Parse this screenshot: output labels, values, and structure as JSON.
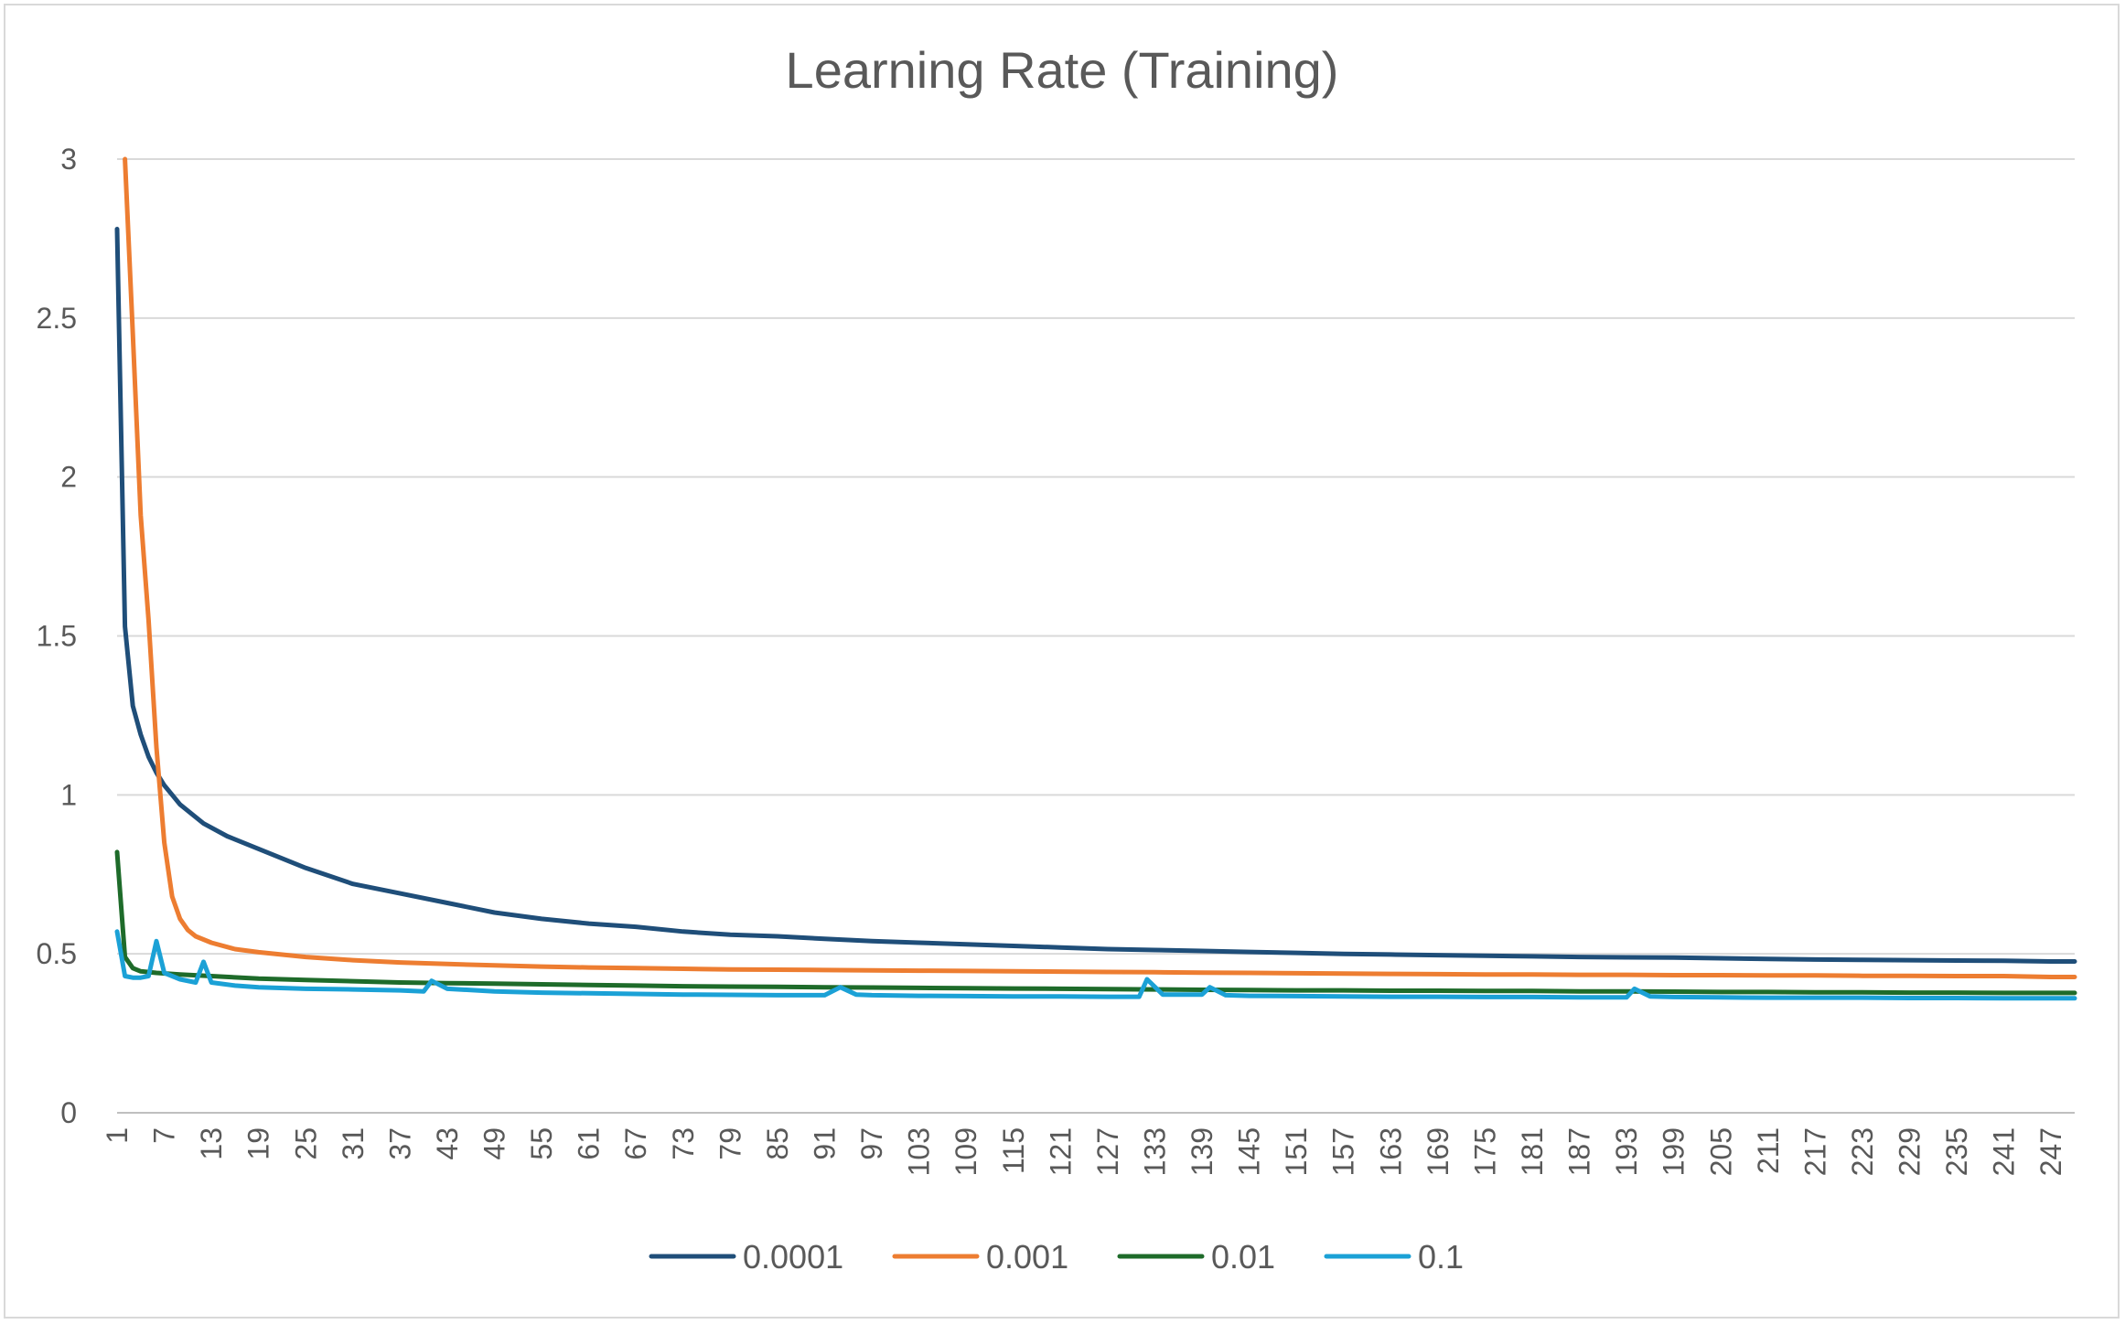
{
  "chart_data": {
    "type": "line",
    "title": "Learning Rate (Training)",
    "xlabel": "",
    "ylabel": "",
    "x_range": [
      1,
      250
    ],
    "x_tick_labels": [
      "1",
      "7",
      "13",
      "19",
      "25",
      "31",
      "37",
      "43",
      "49",
      "55",
      "61",
      "67",
      "73",
      "79",
      "85",
      "91",
      "97",
      "103",
      "109",
      "115",
      "121",
      "127",
      "133",
      "139",
      "145",
      "151",
      "157",
      "163",
      "169",
      "175",
      "181",
      "187",
      "193",
      "199",
      "205",
      "211",
      "217",
      "223",
      "229",
      "235",
      "241",
      "247"
    ],
    "ylim": [
      0,
      3
    ],
    "y_ticks": [
      0,
      0.5,
      1,
      1.5,
      2,
      2.5,
      3
    ],
    "y_tick_labels": [
      "0",
      "0.5",
      "1",
      "1.5",
      "2",
      "2.5",
      "3"
    ],
    "grid": true,
    "legend_position": "bottom",
    "series": [
      {
        "name": "0.0001",
        "color": "#1f4e79",
        "points": [
          [
            1,
            2.78
          ],
          [
            2,
            1.53
          ],
          [
            3,
            1.28
          ],
          [
            4,
            1.19
          ],
          [
            5,
            1.12
          ],
          [
            6,
            1.07
          ],
          [
            7,
            1.03
          ],
          [
            8,
            1.0
          ],
          [
            9,
            0.97
          ],
          [
            10,
            0.95
          ],
          [
            12,
            0.91
          ],
          [
            15,
            0.87
          ],
          [
            19,
            0.83
          ],
          [
            25,
            0.77
          ],
          [
            31,
            0.72
          ],
          [
            37,
            0.69
          ],
          [
            43,
            0.66
          ],
          [
            49,
            0.63
          ],
          [
            55,
            0.61
          ],
          [
            61,
            0.595
          ],
          [
            67,
            0.585
          ],
          [
            73,
            0.57
          ],
          [
            79,
            0.56
          ],
          [
            85,
            0.555
          ],
          [
            91,
            0.547
          ],
          [
            97,
            0.54
          ],
          [
            103,
            0.535
          ],
          [
            109,
            0.53
          ],
          [
            115,
            0.525
          ],
          [
            121,
            0.52
          ],
          [
            127,
            0.515
          ],
          [
            133,
            0.512
          ],
          [
            139,
            0.509
          ],
          [
            145,
            0.506
          ],
          [
            151,
            0.503
          ],
          [
            157,
            0.5
          ],
          [
            163,
            0.498
          ],
          [
            169,
            0.496
          ],
          [
            175,
            0.494
          ],
          [
            181,
            0.492
          ],
          [
            187,
            0.49
          ],
          [
            193,
            0.489
          ],
          [
            199,
            0.488
          ],
          [
            205,
            0.486
          ],
          [
            211,
            0.484
          ],
          [
            217,
            0.482
          ],
          [
            223,
            0.481
          ],
          [
            229,
            0.48
          ],
          [
            235,
            0.479
          ],
          [
            241,
            0.478
          ],
          [
            247,
            0.476
          ],
          [
            250,
            0.476
          ]
        ]
      },
      {
        "name": "0.001",
        "color": "#ed7d31",
        "points": [
          [
            2,
            3.0
          ],
          [
            3,
            2.45
          ],
          [
            4,
            1.88
          ],
          [
            5,
            1.55
          ],
          [
            6,
            1.15
          ],
          [
            7,
            0.85
          ],
          [
            8,
            0.68
          ],
          [
            9,
            0.61
          ],
          [
            10,
            0.575
          ],
          [
            11,
            0.555
          ],
          [
            13,
            0.535
          ],
          [
            16,
            0.515
          ],
          [
            19,
            0.505
          ],
          [
            25,
            0.49
          ],
          [
            31,
            0.48
          ],
          [
            37,
            0.473
          ],
          [
            43,
            0.468
          ],
          [
            49,
            0.464
          ],
          [
            55,
            0.46
          ],
          [
            61,
            0.457
          ],
          [
            67,
            0.455
          ],
          [
            73,
            0.453
          ],
          [
            79,
            0.451
          ],
          [
            85,
            0.45
          ],
          [
            91,
            0.449
          ],
          [
            97,
            0.448
          ],
          [
            103,
            0.447
          ],
          [
            109,
            0.446
          ],
          [
            115,
            0.445
          ],
          [
            121,
            0.444
          ],
          [
            127,
            0.443
          ],
          [
            133,
            0.442
          ],
          [
            139,
            0.441
          ],
          [
            145,
            0.44
          ],
          [
            151,
            0.439
          ],
          [
            157,
            0.438
          ],
          [
            163,
            0.437
          ],
          [
            169,
            0.436
          ],
          [
            175,
            0.435
          ],
          [
            181,
            0.435
          ],
          [
            187,
            0.434
          ],
          [
            193,
            0.434
          ],
          [
            199,
            0.433
          ],
          [
            205,
            0.433
          ],
          [
            211,
            0.432
          ],
          [
            217,
            0.432
          ],
          [
            223,
            0.431
          ],
          [
            229,
            0.431
          ],
          [
            235,
            0.43
          ],
          [
            241,
            0.43
          ],
          [
            247,
            0.427
          ],
          [
            250,
            0.427
          ]
        ]
      },
      {
        "name": "0.01",
        "color": "#1e6b2a",
        "points": [
          [
            1,
            0.82
          ],
          [
            2,
            0.49
          ],
          [
            3,
            0.455
          ],
          [
            4,
            0.445
          ],
          [
            6,
            0.44
          ],
          [
            9,
            0.435
          ],
          [
            13,
            0.43
          ],
          [
            19,
            0.422
          ],
          [
            25,
            0.418
          ],
          [
            31,
            0.414
          ],
          [
            37,
            0.41
          ],
          [
            43,
            0.408
          ],
          [
            49,
            0.406
          ],
          [
            55,
            0.404
          ],
          [
            61,
            0.402
          ],
          [
            67,
            0.4
          ],
          [
            73,
            0.398
          ],
          [
            79,
            0.397
          ],
          [
            85,
            0.396
          ],
          [
            91,
            0.395
          ],
          [
            97,
            0.394
          ],
          [
            103,
            0.393
          ],
          [
            109,
            0.392
          ],
          [
            115,
            0.391
          ],
          [
            121,
            0.39
          ],
          [
            127,
            0.389
          ],
          [
            133,
            0.388
          ],
          [
            139,
            0.387
          ],
          [
            145,
            0.386
          ],
          [
            151,
            0.385
          ],
          [
            157,
            0.385
          ],
          [
            163,
            0.384
          ],
          [
            169,
            0.384
          ],
          [
            175,
            0.383
          ],
          [
            181,
            0.383
          ],
          [
            187,
            0.382
          ],
          [
            193,
            0.382
          ],
          [
            199,
            0.381
          ],
          [
            205,
            0.38
          ],
          [
            211,
            0.38
          ],
          [
            217,
            0.379
          ],
          [
            223,
            0.379
          ],
          [
            229,
            0.378
          ],
          [
            235,
            0.378
          ],
          [
            241,
            0.377
          ],
          [
            247,
            0.377
          ],
          [
            250,
            0.377
          ]
        ]
      },
      {
        "name": "0.1",
        "color": "#1ba1d6",
        "points": [
          [
            1,
            0.57
          ],
          [
            2,
            0.43
          ],
          [
            3,
            0.425
          ],
          [
            4,
            0.425
          ],
          [
            5,
            0.43
          ],
          [
            6,
            0.54
          ],
          [
            7,
            0.44
          ],
          [
            9,
            0.42
          ],
          [
            11,
            0.41
          ],
          [
            12,
            0.475
          ],
          [
            13,
            0.41
          ],
          [
            16,
            0.4
          ],
          [
            19,
            0.395
          ],
          [
            25,
            0.39
          ],
          [
            31,
            0.388
          ],
          [
            37,
            0.385
          ],
          [
            40,
            0.382
          ],
          [
            41,
            0.415
          ],
          [
            43,
            0.39
          ],
          [
            49,
            0.382
          ],
          [
            55,
            0.378
          ],
          [
            61,
            0.376
          ],
          [
            67,
            0.374
          ],
          [
            73,
            0.372
          ],
          [
            79,
            0.371
          ],
          [
            85,
            0.37
          ],
          [
            91,
            0.37
          ],
          [
            93,
            0.395
          ],
          [
            95,
            0.372
          ],
          [
            97,
            0.37
          ],
          [
            103,
            0.368
          ],
          [
            109,
            0.367
          ],
          [
            115,
            0.366
          ],
          [
            121,
            0.366
          ],
          [
            127,
            0.365
          ],
          [
            131,
            0.365
          ],
          [
            132,
            0.42
          ],
          [
            134,
            0.372
          ],
          [
            139,
            0.372
          ],
          [
            140,
            0.395
          ],
          [
            142,
            0.37
          ],
          [
            145,
            0.368
          ],
          [
            151,
            0.367
          ],
          [
            157,
            0.366
          ],
          [
            163,
            0.365
          ],
          [
            169,
            0.365
          ],
          [
            175,
            0.364
          ],
          [
            181,
            0.364
          ],
          [
            187,
            0.363
          ],
          [
            193,
            0.363
          ],
          [
            194,
            0.39
          ],
          [
            196,
            0.366
          ],
          [
            199,
            0.364
          ],
          [
            205,
            0.363
          ],
          [
            211,
            0.362
          ],
          [
            217,
            0.362
          ],
          [
            223,
            0.362
          ],
          [
            229,
            0.361
          ],
          [
            235,
            0.361
          ],
          [
            241,
            0.36
          ],
          [
            247,
            0.36
          ],
          [
            250,
            0.36
          ]
        ]
      }
    ]
  }
}
